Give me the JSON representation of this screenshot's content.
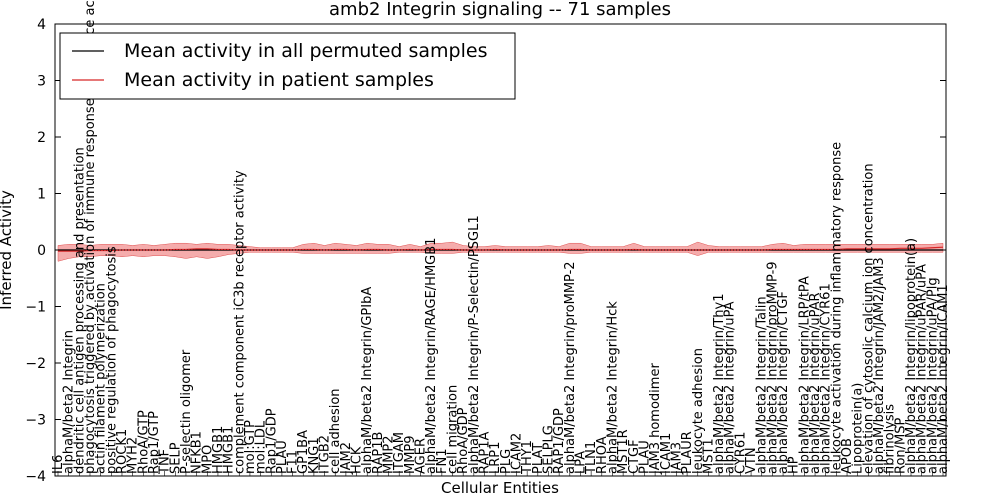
{
  "chart_data": {
    "type": "line",
    "title": "amb2 Integrin signaling -- 71 samples",
    "xlabel": "Cellular Entities",
    "ylabel": "Inferred Activity",
    "ylim": [
      -4,
      4
    ],
    "yticks": [
      -4,
      -3,
      -2,
      -1,
      0,
      1,
      2,
      3,
      4
    ],
    "grid": false,
    "legend_position": "top-left",
    "colors": {
      "permuted": "#000000",
      "patient": "#d62728",
      "band": "#f08080",
      "permuted_band": "#b0b0b0"
    },
    "categories": [
      "IL6",
      "alphaM/beta2 Integrin",
      "dendritic cell antigen processing and presentation",
      "phagocytosis triggered by activation of immune response cell surface activating receptor",
      "actin filament polymerization",
      "positive regulation of phagocytosis",
      "ROCK1",
      "MYH2",
      "RhoA/GTP",
      "Rap1/GTP",
      "TNF",
      "SELP",
      "P-selectin oligomer",
      "NFKB1",
      "MPO",
      "HMGB1",
      "HMGB1",
      "complement component iC3b receptor activity",
      "mol:GTP",
      "mol:LDL",
      "Rap1/GDP",
      "PLAU",
      "F11",
      "GP1BA",
      "KNG1",
      "ITGB2",
      "cell adhesion",
      "JAM2",
      "HCK",
      "alphaM/beta2 Integrin/GPIbA",
      "RAP1B",
      "MMP2",
      "ITGAM",
      "MMP9",
      "AGER",
      "alphaM/beta2 Integrin/RAGE/HMGB1",
      "FN1",
      "cell migration",
      "RhoA/GDP",
      "alphaM/beta2 Integrin/P-Selectin/PSGL1",
      "RAP1A",
      "LRP1",
      "PLG",
      "ICAM2",
      "THY1",
      "PLAT",
      "SELPLG",
      "RAP1/GDP",
      "alphaM/beta2 Integrin/proMMP-2",
      "LPA",
      "TLN1",
      "RHOA",
      "alphaM/beta2 Integrin/Hck",
      "MST1R",
      "CTGF",
      "PLAU",
      "JAM3 homodimer",
      "ICAM1",
      "JAM3",
      "PLAUR",
      "leukocyte adhesion",
      "MST1",
      "alphaM/beta2 Integrin/Thy1",
      "alphaM/beta2 Integrin/uPA",
      "CYR61",
      "VTN",
      "alphaM/beta2 Integrin/Talin",
      "alphaM/beta2 Integrin/proMMP-9",
      "alphaM/beta2 Integrin/CTGF",
      "HP",
      "alphaM/beta2 Integrin/LRP/tPA",
      "alphaM/beta2 Integrin/uPAR",
      "alphaM/beta2 Integrin/CYR61",
      "leukocyte activation during inflammatory response",
      "APOB",
      "Lipoprotein(a)",
      "elevation of cytosolic calcium ion concentration",
      "alphaM/beta2 Integrin/JAM2/JAM3",
      "fibrinolysis",
      "Ron/MSP",
      "alphaM/beta2 Integrin/lipoprotein(a)",
      "alphaM/beta2 Integrin/uPAR/uPA",
      "alphaM/beta2 Integrin/uPA/Plg",
      "alphaM/beta2 Integrin/ICAM1"
    ],
    "series": [
      {
        "name": "Mean activity in all permuted samples",
        "values": [
          0,
          0,
          0,
          0,
          0,
          0,
          0,
          0,
          0,
          0,
          0,
          0,
          0,
          0,
          0,
          0,
          0,
          0,
          0,
          0,
          0,
          0,
          0,
          0,
          0,
          0,
          0,
          0,
          0,
          0,
          0,
          0,
          0,
          0,
          0,
          0,
          0,
          0,
          0,
          0,
          0,
          0,
          0,
          0,
          0,
          0,
          0,
          0,
          0,
          0,
          0,
          0,
          0,
          0,
          0,
          0,
          0,
          0,
          0,
          0,
          0,
          0,
          0,
          0,
          0,
          0,
          0,
          0,
          0,
          0,
          0,
          0,
          0,
          0,
          0,
          0,
          0,
          0,
          0,
          0,
          0,
          0,
          0,
          0
        ]
      },
      {
        "name": "Mean activity in patient samples",
        "values": [
          -0.02,
          -0.02,
          -0.02,
          -0.01,
          -0.01,
          -0.01,
          0,
          0,
          0,
          0,
          0,
          0.01,
          0.01,
          0.02,
          0.02,
          0.01,
          0.01,
          0,
          0,
          0,
          0,
          0,
          0,
          0.01,
          0.01,
          0,
          0.01,
          0.01,
          0,
          0.01,
          0.01,
          0,
          0,
          0.01,
          0,
          0.01,
          0.01,
          0.01,
          0,
          0,
          0,
          0.01,
          0,
          0,
          0,
          0,
          0,
          0,
          0.01,
          0.01,
          0,
          0,
          0,
          0,
          0.01,
          0,
          0,
          0,
          0,
          0,
          0,
          0,
          0,
          0,
          0,
          0,
          0,
          0.01,
          0.01,
          0.01,
          0.01,
          0.01,
          0.01,
          0.01,
          0.02,
          0.02,
          0.02,
          0.02,
          0.02,
          0.03,
          0.03,
          0.03,
          0.04,
          0.05
        ]
      }
    ],
    "patient_band": {
      "upper": [
        0.08,
        0.1,
        0.1,
        0.08,
        0.1,
        0.1,
        0.1,
        0.08,
        0.1,
        0.08,
        0.1,
        0.12,
        0.12,
        0.1,
        0.12,
        0.1,
        0.1,
        0.08,
        0.06,
        0.04,
        0.04,
        0.04,
        0.04,
        0.1,
        0.12,
        0.08,
        0.12,
        0.1,
        0.08,
        0.12,
        0.1,
        0.1,
        0.06,
        0.1,
        0.06,
        0.12,
        0.12,
        0.14,
        0.08,
        0.06,
        0.06,
        0.08,
        0.06,
        0.06,
        0.06,
        0.06,
        0.08,
        0.06,
        0.12,
        0.12,
        0.06,
        0.06,
        0.06,
        0.06,
        0.12,
        0.06,
        0.06,
        0.06,
        0.06,
        0.06,
        0.14,
        0.08,
        0.06,
        0.06,
        0.06,
        0.06,
        0.06,
        0.1,
        0.12,
        0.08,
        0.1,
        0.1,
        0.1,
        0.1,
        0.1,
        0.1,
        0.1,
        0.1,
        0.1,
        0.1,
        0.1,
        0.1,
        0.1,
        0.12
      ],
      "lower": [
        -0.2,
        -0.15,
        -0.12,
        -0.12,
        -0.1,
        -0.1,
        -0.12,
        -0.1,
        -0.12,
        -0.1,
        -0.1,
        -0.12,
        -0.15,
        -0.12,
        -0.15,
        -0.12,
        -0.08,
        -0.06,
        -0.04,
        -0.04,
        -0.04,
        -0.04,
        -0.04,
        -0.06,
        -0.06,
        -0.06,
        -0.06,
        -0.06,
        -0.06,
        -0.06,
        -0.06,
        -0.06,
        -0.04,
        -0.04,
        -0.04,
        -0.06,
        -0.06,
        -0.06,
        -0.04,
        -0.04,
        -0.04,
        -0.04,
        -0.04,
        -0.04,
        -0.04,
        -0.04,
        -0.04,
        -0.04,
        -0.06,
        -0.06,
        -0.04,
        -0.04,
        -0.04,
        -0.04,
        -0.04,
        -0.04,
        -0.04,
        -0.04,
        -0.04,
        -0.04,
        -0.1,
        -0.04,
        -0.04,
        -0.04,
        -0.04,
        -0.04,
        -0.04,
        -0.04,
        -0.04,
        -0.04,
        -0.04,
        -0.04,
        -0.04,
        -0.04,
        -0.04,
        -0.04,
        -0.04,
        -0.04,
        -0.04,
        -0.04,
        -0.04,
        -0.04,
        -0.04,
        -0.04
      ]
    }
  }
}
